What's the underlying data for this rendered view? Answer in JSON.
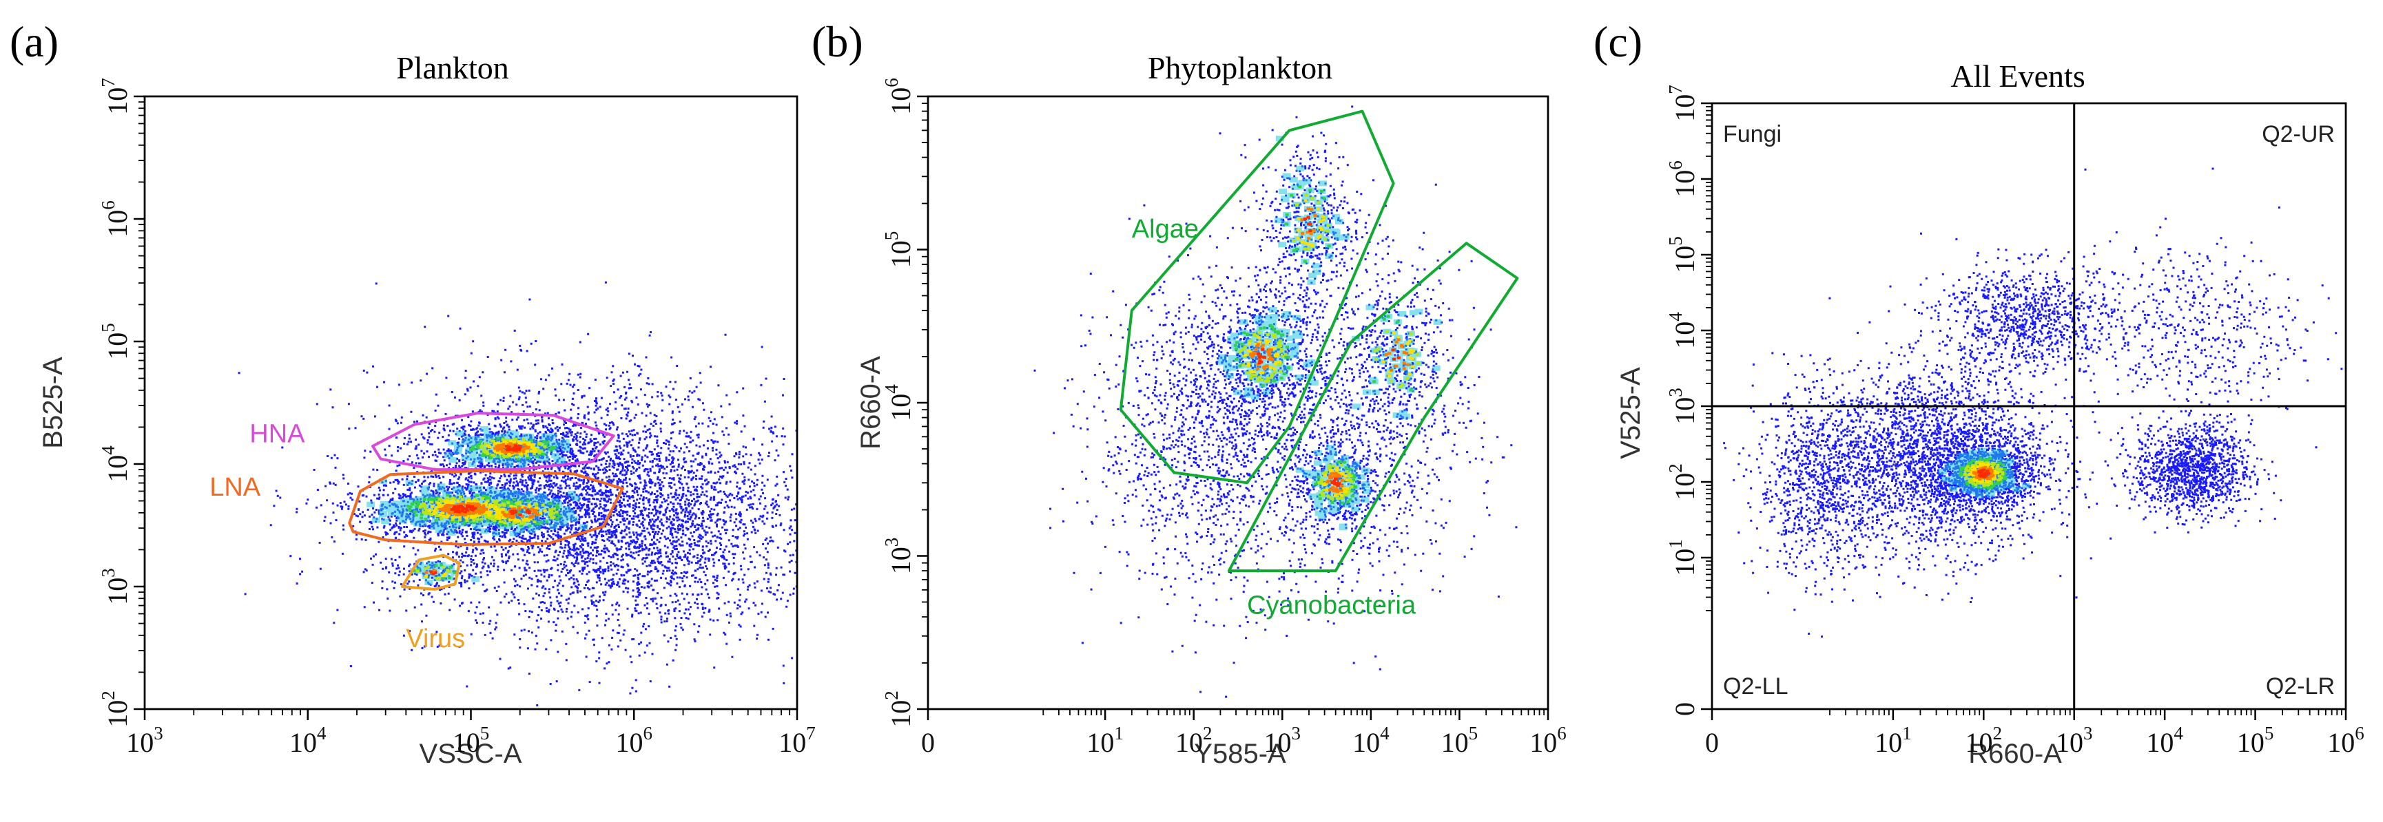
{
  "chart_data": [
    {
      "type": "scatter",
      "panel_label": "(a)",
      "title": "Plankton",
      "xlabel": "VSSC-A",
      "ylabel": "B525-A",
      "x_scale": "log",
      "y_scale": "log",
      "xlim": [
        1000,
        10000000
      ],
      "ylim": [
        100,
        10000000
      ],
      "x_ticks": [
        {
          "base": "10",
          "exp": "3",
          "value": 1000
        },
        {
          "base": "10",
          "exp": "4",
          "value": 10000
        },
        {
          "base": "10",
          "exp": "5",
          "value": 100000
        },
        {
          "base": "10",
          "exp": "6",
          "value": 1000000
        },
        {
          "base": "10",
          "exp": "7",
          "value": 10000000
        }
      ],
      "y_ticks": [
        {
          "base": "10",
          "exp": "2",
          "value": 100
        },
        {
          "base": "10",
          "exp": "3",
          "value": 1000
        },
        {
          "base": "10",
          "exp": "4",
          "value": 10000
        },
        {
          "base": "10",
          "exp": "5",
          "value": 100000
        },
        {
          "base": "10",
          "exp": "6",
          "value": 1000000
        },
        {
          "base": "10",
          "exp": "7",
          "value": 10000000
        }
      ],
      "gates": [
        {
          "name": "HNA",
          "color": "#d94ad9",
          "label_at": [
            4400,
            15000
          ],
          "polygon": [
            [
              25000,
              14000
            ],
            [
              45000,
              21000
            ],
            [
              110000,
              26000
            ],
            [
              320000,
              25000
            ],
            [
              750000,
              17000
            ],
            [
              560000,
              10500
            ],
            [
              190000,
              9000
            ],
            [
              60000,
              9000
            ],
            [
              28000,
              11000
            ]
          ]
        },
        {
          "name": "LNA",
          "color": "#f06a20",
          "label_at": [
            2500,
            5500
          ],
          "polygon": [
            [
              18000,
              3300
            ],
            [
              21000,
              6000
            ],
            [
              32000,
              8200
            ],
            [
              110000,
              8800
            ],
            [
              430000,
              8300
            ],
            [
              850000,
              6300
            ],
            [
              650000,
              3100
            ],
            [
              300000,
              2250
            ],
            [
              90000,
              2200
            ],
            [
              30000,
              2400
            ],
            [
              19000,
              2800
            ]
          ]
        },
        {
          "name": "Virus",
          "color": "#f0a020",
          "label_at": [
            40000,
            320
          ],
          "polygon": [
            [
              38000,
              1000
            ],
            [
              48000,
              1650
            ],
            [
              68000,
              1800
            ],
            [
              85000,
              1550
            ],
            [
              80000,
              1050
            ],
            [
              60000,
              950
            ]
          ]
        }
      ],
      "density_clusters": [
        {
          "x": 180000,
          "y": 13500,
          "sx": 0.28,
          "sy": 0.1,
          "n": 700,
          "core": 260
        },
        {
          "x": 90000,
          "y": 4300,
          "sx": 0.38,
          "sy": 0.13,
          "n": 900,
          "core": 420
        },
        {
          "x": 200000,
          "y": 4000,
          "sx": 0.3,
          "sy": 0.12,
          "n": 500,
          "core": 220
        },
        {
          "x": 60000,
          "y": 1300,
          "sx": 0.15,
          "sy": 0.07,
          "n": 120,
          "core": 30
        },
        {
          "x": 400000,
          "y": 5000,
          "sx": 0.6,
          "sy": 0.5,
          "n": 3000,
          "core": 0
        },
        {
          "x": 1500000,
          "y": 3000,
          "sx": 0.5,
          "sy": 0.45,
          "n": 1600,
          "core": 0
        }
      ]
    },
    {
      "type": "scatter",
      "panel_label": "(b)",
      "title": "Phytoplankton",
      "xlabel": "Y585-A",
      "ylabel": "R660-A",
      "x_scale": "log-with-zero",
      "y_scale": "log",
      "xlim": [
        0,
        1000000
      ],
      "ylim": [
        100,
        1000000
      ],
      "x_ticks": [
        {
          "base": "0",
          "exp": "",
          "value": 0
        },
        {
          "base": "10",
          "exp": "1",
          "value": 10
        },
        {
          "base": "10",
          "exp": "2",
          "value": 100
        },
        {
          "base": "10",
          "exp": "3",
          "value": 1000
        },
        {
          "base": "10",
          "exp": "4",
          "value": 10000
        },
        {
          "base": "10",
          "exp": "5",
          "value": 100000
        },
        {
          "base": "10",
          "exp": "6",
          "value": 1000000
        }
      ],
      "y_ticks": [
        {
          "base": "10",
          "exp": "2",
          "value": 100
        },
        {
          "base": "10",
          "exp": "3",
          "value": 1000
        },
        {
          "base": "10",
          "exp": "4",
          "value": 10000
        },
        {
          "base": "10",
          "exp": "5",
          "value": 100000
        },
        {
          "base": "10",
          "exp": "6",
          "value": 1000000
        }
      ],
      "gates": [
        {
          "name": "Algae",
          "color": "#11aa33",
          "label_at": [
            20,
            120000
          ],
          "polygon": [
            [
              20,
              40000
            ],
            [
              1200,
              600000
            ],
            [
              8000,
              800000
            ],
            [
              18000,
              270000
            ],
            [
              1200,
              7000
            ],
            [
              400,
              3000
            ],
            [
              60,
              3500
            ],
            [
              15,
              9000
            ]
          ]
        },
        {
          "name": "Cyanobacteria",
          "color": "#11aa33",
          "label_at": [
            400,
            420
          ],
          "polygon": [
            [
              250,
              800
            ],
            [
              4000,
              800
            ],
            [
              40000,
              8000
            ],
            [
              450000,
              65000
            ],
            [
              120000,
              110000
            ],
            [
              6000,
              25000
            ]
          ]
        }
      ],
      "density_clusters": [
        {
          "x": 600,
          "y": 20000,
          "sx": 0.35,
          "sy": 0.23,
          "n": 600,
          "core": 180
        },
        {
          "x": 2000,
          "y": 150000,
          "sx": 0.3,
          "sy": 0.28,
          "n": 500,
          "core": 80
        },
        {
          "x": 4000,
          "y": 3000,
          "sx": 0.25,
          "sy": 0.17,
          "n": 400,
          "core": 160
        },
        {
          "x": 20000,
          "y": 20000,
          "sx": 0.35,
          "sy": 0.3,
          "n": 400,
          "core": 60
        },
        {
          "x": 200,
          "y": 6000,
          "sx": 0.7,
          "sy": 0.5,
          "n": 1600,
          "core": 0
        },
        {
          "x": 10000,
          "y": 6000,
          "sx": 0.6,
          "sy": 0.5,
          "n": 700,
          "core": 0
        }
      ]
    },
    {
      "type": "scatter",
      "panel_label": "(c)",
      "title": "All Events",
      "xlabel": "R660-A",
      "ylabel": "V525-A",
      "x_scale": "log-with-zero",
      "y_scale": "log-with-zero",
      "xlim": [
        0,
        1000000
      ],
      "ylim": [
        0,
        10000000
      ],
      "x_ticks": [
        {
          "base": "0",
          "exp": "",
          "value": 0
        },
        {
          "base": "10",
          "exp": "1",
          "value": 10
        },
        {
          "base": "10",
          "exp": "2",
          "value": 100
        },
        {
          "base": "10",
          "exp": "3",
          "value": 1000
        },
        {
          "base": "10",
          "exp": "4",
          "value": 10000
        },
        {
          "base": "10",
          "exp": "5",
          "value": 100000
        },
        {
          "base": "10",
          "exp": "6",
          "value": 1000000
        }
      ],
      "y_ticks": [
        {
          "base": "0",
          "exp": "",
          "value": 0
        },
        {
          "base": "10",
          "exp": "1",
          "value": 10
        },
        {
          "base": "10",
          "exp": "2",
          "value": 100
        },
        {
          "base": "10",
          "exp": "3",
          "value": 1000
        },
        {
          "base": "10",
          "exp": "4",
          "value": 10000
        },
        {
          "base": "10",
          "exp": "5",
          "value": 100000
        },
        {
          "base": "10",
          "exp": "6",
          "value": 1000000
        },
        {
          "base": "10",
          "exp": "7",
          "value": 10000000
        }
      ],
      "quadrant_divider": {
        "x": 1000,
        "y": 1000
      },
      "quadrant_labels": [
        {
          "text": "Fungi",
          "corner": "top-left"
        },
        {
          "text": "Q2-UR",
          "corner": "top-right"
        },
        {
          "text": "Q2-LL",
          "corner": "bottom-left"
        },
        {
          "text": "Q2-LR",
          "corner": "bottom-right"
        }
      ],
      "density_clusters": [
        {
          "x": 100,
          "y": 130,
          "sx": 0.28,
          "sy": 0.22,
          "n": 900,
          "core": 320
        },
        {
          "x": 30,
          "y": 200,
          "sx": 0.6,
          "sy": 0.6,
          "n": 2600,
          "core": 0
        },
        {
          "x": 1.5,
          "y": 100,
          "sx": 0.35,
          "sy": 0.6,
          "n": 900,
          "core": 0
        },
        {
          "x": 300,
          "y": 15000,
          "sx": 0.5,
          "sy": 0.35,
          "n": 900,
          "core": 0
        },
        {
          "x": 20000,
          "y": 150,
          "sx": 0.32,
          "sy": 0.3,
          "n": 1200,
          "core": 0
        },
        {
          "x": 20000,
          "y": 10000,
          "sx": 0.6,
          "sy": 0.6,
          "n": 500,
          "core": 0
        }
      ]
    }
  ]
}
